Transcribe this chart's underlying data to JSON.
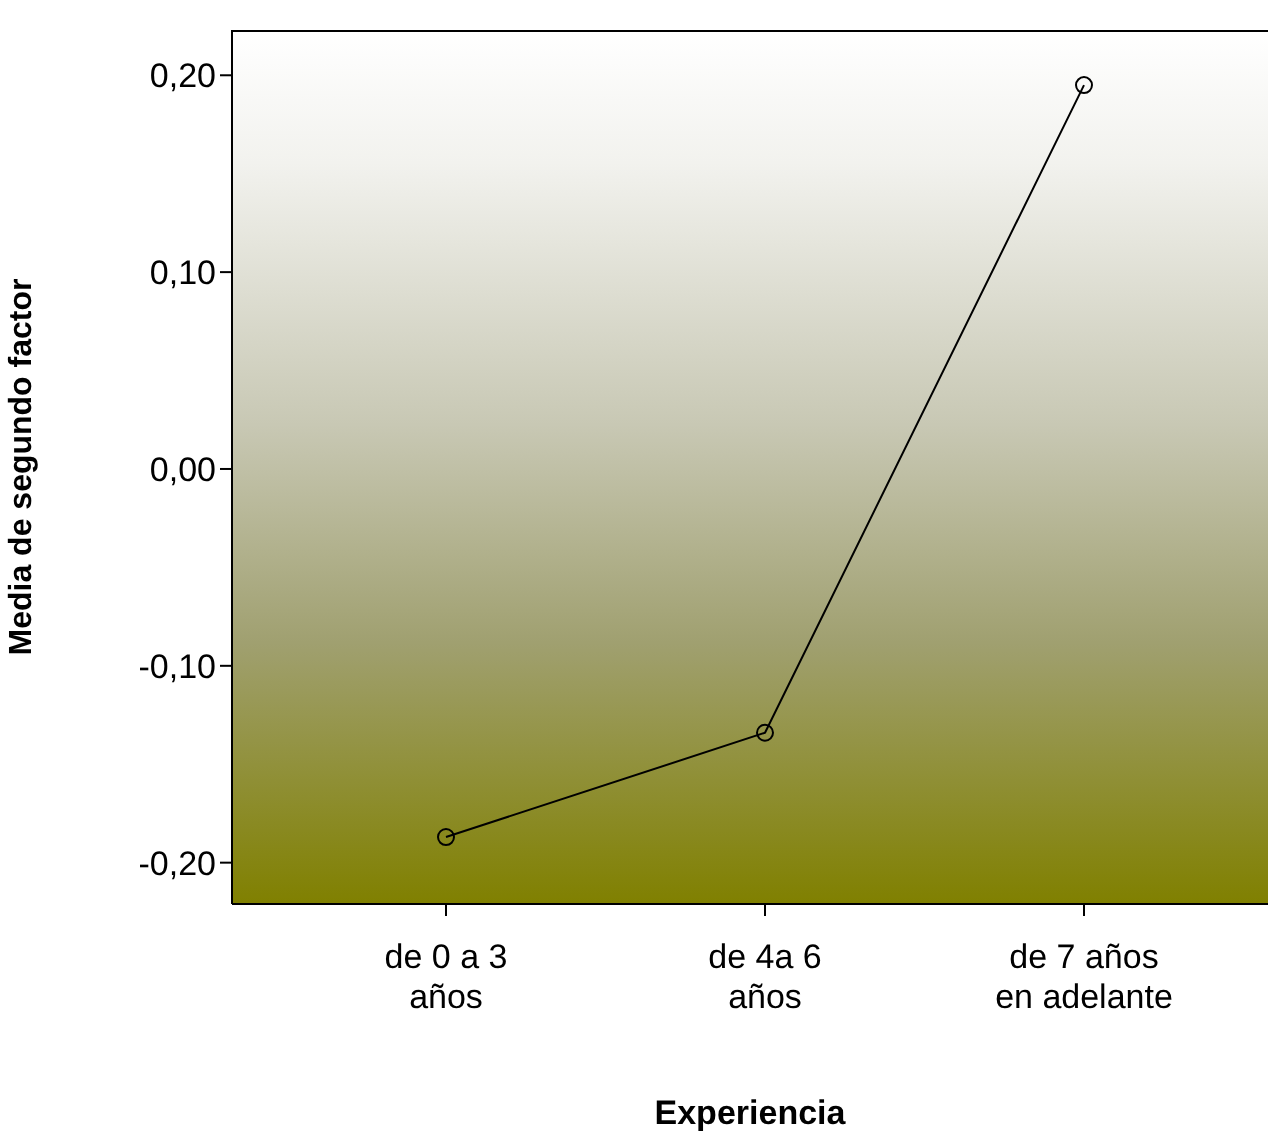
{
  "chart_data": {
    "type": "line",
    "xlabel": "Experiencia",
    "ylabel": "Media de  segundo factor",
    "categories": [
      "de 0 a 3\naños",
      "de 4a 6\naños",
      "de 7 años\nen adelante"
    ],
    "series": [
      {
        "color": "#000000",
        "values": [
          -0.187,
          -0.134,
          0.195
        ]
      }
    ],
    "ylim": [
      -0.221,
      0.223
    ],
    "yticks": [
      {
        "value": -0.2,
        "label": "-0,20"
      },
      {
        "value": -0.1,
        "label": "-0,10"
      },
      {
        "value": 0,
        "label": "0,00"
      },
      {
        "value": 0.1,
        "label": "0,10"
      },
      {
        "value": 0.2,
        "label": "0,20"
      }
    ],
    "marker": "circle",
    "line_style": "solid",
    "grid": false
  }
}
